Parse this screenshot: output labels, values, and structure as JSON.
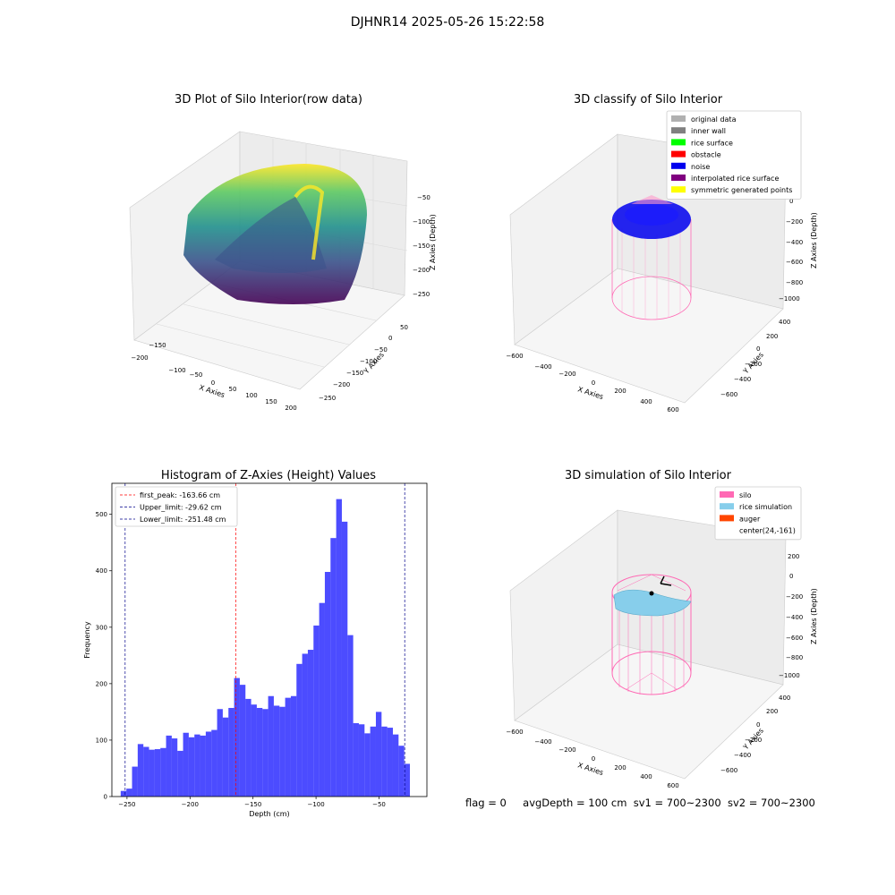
{
  "suptitle": "DJHNR14 2025-05-26 15:22:58",
  "panels": {
    "raw": {
      "title": "3D Plot of Silo Interior(row data)",
      "xlabel": "X Axies",
      "ylabel": "Y Axies",
      "zlabel": "Z Axies (Depth)",
      "xticks": [
        "−200",
        "−150",
        "−100",
        "−50",
        "0",
        "50",
        "100",
        "150",
        "200"
      ],
      "yticks": [
        "50",
        "0",
        "−50",
        "−100",
        "−150",
        "−200",
        "−250"
      ],
      "zticks": [
        "−50",
        "−100",
        "−150",
        "−200",
        "−250"
      ]
    },
    "classify": {
      "title": "3D classify of Silo Interior",
      "xlabel": "X Axies",
      "ylabel": "Y Axies",
      "zlabel": "Z Axies (Depth)",
      "xticks": [
        "−600",
        "−400",
        "−200",
        "0",
        "200",
        "400",
        "600"
      ],
      "yticks": [
        "400",
        "200",
        "0",
        "−200",
        "−400",
        "−600"
      ],
      "zticks": [
        "200",
        "0",
        "−200",
        "−400",
        "−600",
        "−800",
        "−1000"
      ],
      "legend": [
        {
          "label": "original data",
          "color": "#b0b0b0"
        },
        {
          "label": "inner wall",
          "color": "#808080"
        },
        {
          "label": "rice surface",
          "color": "#00ff00"
        },
        {
          "label": "obstacle",
          "color": "#ff0000"
        },
        {
          "label": "noise",
          "color": "#0000ee"
        },
        {
          "label": "interpolated rice surface",
          "color": "#800080"
        },
        {
          "label": "symmetric generated points",
          "color": "#ffff00"
        }
      ]
    },
    "simulation": {
      "title": "3D simulation of Silo Interior",
      "xlabel": "X Axies",
      "ylabel": "Y Axies",
      "zlabel": "Z Axies (Depth)",
      "xticks": [
        "−600",
        "−400",
        "−200",
        "0",
        "200",
        "400",
        "600"
      ],
      "yticks": [
        "400",
        "200",
        "0",
        "−200",
        "−400",
        "−600"
      ],
      "zticks": [
        "200",
        "0",
        "−200",
        "−400",
        "−600",
        "−800",
        "−1000"
      ],
      "legend": [
        {
          "label": "silo",
          "color": "#ff69b4"
        },
        {
          "label": "rice simulation",
          "color": "#87ceeb"
        },
        {
          "label": "auger",
          "color": "#ff4500"
        },
        {
          "label": "center(24,-161)",
          "color": ""
        }
      ]
    }
  },
  "footer": {
    "flag": "flag = 0",
    "avg": "avgDepth = 100 cm",
    "sv1": "sv1 = 700~2300",
    "sv2": "sv2 = 700~2300"
  },
  "chart_data": [
    {
      "type": "bar",
      "title": "Histogram of Z-Axies (Height) Values",
      "xlabel": "Depth (cm)",
      "ylabel": "Frequency",
      "xlim": [
        -262,
        -12
      ],
      "ylim": [
        0,
        555
      ],
      "bin_start": -255,
      "bin_width": 4.5,
      "values": [
        10,
        14,
        53,
        93,
        88,
        83,
        84,
        86,
        108,
        103,
        81,
        113,
        105,
        110,
        108,
        115,
        118,
        155,
        140,
        157,
        210,
        198,
        173,
        163,
        157,
        155,
        178,
        161,
        159,
        175,
        178,
        235,
        253,
        260,
        303,
        343,
        398,
        458,
        527,
        487,
        286,
        130,
        128,
        112,
        124,
        150,
        124,
        122,
        110,
        90,
        58
      ],
      "xticks": [
        -250,
        -200,
        -150,
        -100,
        -50
      ],
      "xtick_labels": [
        "−250",
        "−200",
        "−150",
        "−100",
        "−50"
      ],
      "yticks": [
        0,
        100,
        200,
        300,
        400,
        500
      ],
      "bar_color": "#0000ff",
      "vlines": [
        {
          "label": "first_peak: -163.66 cm",
          "x": -163.66,
          "color": "#ff0000"
        },
        {
          "label": "Upper_limit: -29.62 cm",
          "x": -29.62,
          "color": "#00008b"
        },
        {
          "label": "Lower_limit: -251.48 cm",
          "x": -251.48,
          "color": "#00008b"
        }
      ],
      "legend_position": "top-left"
    }
  ]
}
